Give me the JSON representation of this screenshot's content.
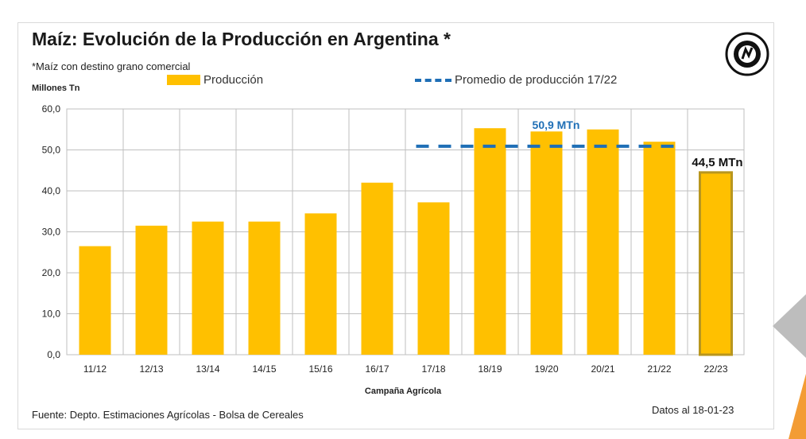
{
  "header": {
    "title": "Maíz: Evolución de la Producción en Argentina *",
    "subtitle": "*Maíz con destino grano comercial",
    "unit_label": "Millones Tn"
  },
  "legend": {
    "bar_label": "Producción",
    "line_label": "Promedio de producción 17/22"
  },
  "footer": {
    "source": "Fuente: Depto. Estimaciones Agrícolas - Bolsa de Cereales",
    "date": "Datos al 18-01-23"
  },
  "colors": {
    "bar": "#ffc000",
    "highlight_bar_border": "#b8961e",
    "average_line": "#1f6fb6",
    "grid": "#bfbfbf"
  },
  "chart_data": {
    "type": "bar",
    "title": "Maíz: Evolución de la Producción en Argentina *",
    "xlabel": "Campaña Agrícola",
    "ylabel": "Millones Tn",
    "ylim": [
      0,
      60
    ],
    "yticks": [
      "0,0",
      "10,0",
      "20,0",
      "30,0",
      "40,0",
      "50,0",
      "60,0"
    ],
    "categories": [
      "11/12",
      "12/13",
      "13/14",
      "14/15",
      "15/16",
      "16/17",
      "17/18",
      "18/19",
      "19/20",
      "20/21",
      "21/22",
      "22/23"
    ],
    "series": [
      {
        "name": "Producción",
        "values": [
          26.5,
          31.5,
          32.5,
          32.5,
          34.5,
          42.0,
          37.2,
          55.3,
          54.5,
          55.0,
          52.0,
          44.5
        ]
      }
    ],
    "average_line": {
      "name": "Promedio de producción 17/22",
      "value": 50.9,
      "from_category": "17/18",
      "to_category": "21/22",
      "label": "50,9 MTn"
    },
    "annotations": [
      {
        "category": "22/23",
        "label": "44,5 MTn"
      }
    ],
    "grid": true,
    "legend_position": "top"
  }
}
